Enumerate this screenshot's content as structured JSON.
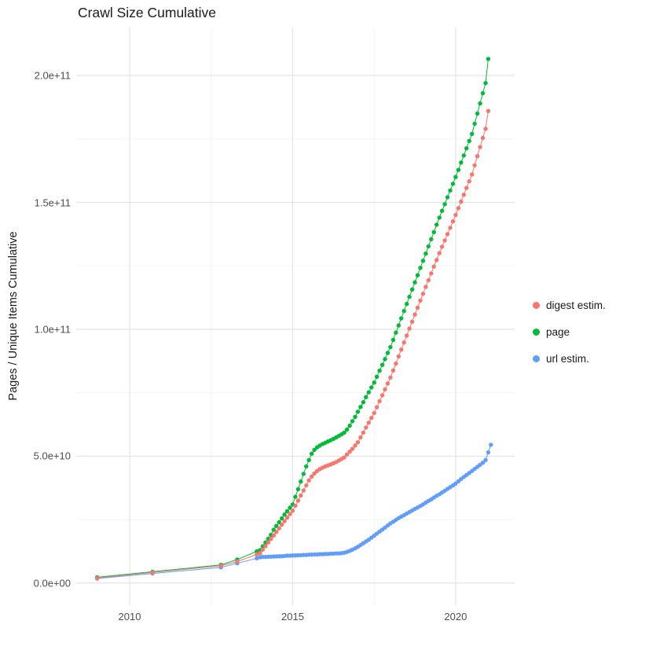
{
  "chart_data": {
    "type": "scatter",
    "title": "Crawl Size Cumulative",
    "ylabel": "Pages / Unique Items Cumulative",
    "xlabel": "",
    "y_values_unit": "billions (1e9 pages / items)",
    "x_domain": [
      2008.36,
      2021.81
    ],
    "y_domain": [
      -8.7,
      218.9
    ],
    "grid": "on",
    "legend_position": "right",
    "x_ticks": [
      {
        "v": 2010,
        "label": "2010"
      },
      {
        "v": 2015,
        "label": "2015"
      },
      {
        "v": 2020,
        "label": "2020"
      }
    ],
    "x_minor": [
      2012.5,
      2017.5
    ],
    "y_ticks": [
      {
        "v": 0,
        "label": "0.0e+00"
      },
      {
        "v": 50,
        "label": "5.0e+10"
      },
      {
        "v": 100,
        "label": "1.0e+11"
      },
      {
        "v": 150,
        "label": "1.5e+11"
      },
      {
        "v": 200,
        "label": "2.0e+11"
      }
    ],
    "y_minor": [
      25,
      75,
      125,
      175
    ],
    "colors": {
      "grid_major": "#e4e4e4",
      "grid_minor": "#f2f2f2",
      "tick_text": "#4d4d4d",
      "title_text": "#1a1a1a"
    },
    "series": [
      {
        "key": "digest",
        "name": "digest estim.",
        "color": "#F8766D",
        "points": [
          [
            2009.0,
            2.0
          ],
          [
            2010.7,
            4.2
          ],
          [
            2012.8,
            6.8
          ],
          [
            2013.3,
            8.5
          ],
          [
            2013.9,
            11.3
          ],
          [
            2014.0,
            11.8
          ],
          [
            2014.083,
            13.2
          ],
          [
            2014.167,
            14.6
          ],
          [
            2014.25,
            16.0
          ],
          [
            2014.333,
            17.4
          ],
          [
            2014.417,
            18.8
          ],
          [
            2014.5,
            20.2
          ],
          [
            2014.583,
            21.6
          ],
          [
            2014.667,
            23.0
          ],
          [
            2014.75,
            24.4
          ],
          [
            2014.833,
            25.8
          ],
          [
            2014.917,
            27.2
          ],
          [
            2015.0,
            28.5
          ],
          [
            2015.083,
            30.5
          ],
          [
            2015.167,
            32.5
          ],
          [
            2015.25,
            34.5
          ],
          [
            2015.333,
            36.5
          ],
          [
            2015.417,
            38.5
          ],
          [
            2015.5,
            40.5
          ],
          [
            2015.583,
            42.0
          ],
          [
            2015.667,
            43.2
          ],
          [
            2015.75,
            44.2
          ],
          [
            2015.833,
            44.9
          ],
          [
            2015.917,
            45.5
          ],
          [
            2016.0,
            46.0
          ],
          [
            2016.083,
            46.4
          ],
          [
            2016.167,
            46.8
          ],
          [
            2016.25,
            47.2
          ],
          [
            2016.333,
            47.7
          ],
          [
            2016.417,
            48.3
          ],
          [
            2016.5,
            48.9
          ],
          [
            2016.583,
            49.5
          ],
          [
            2016.667,
            50.7
          ],
          [
            2016.75,
            51.8
          ],
          [
            2016.833,
            52.9
          ],
          [
            2016.917,
            54.2
          ],
          [
            2017.0,
            55.5
          ],
          [
            2017.083,
            57.4
          ],
          [
            2017.167,
            59.3
          ],
          [
            2017.25,
            61.3
          ],
          [
            2017.333,
            63.2
          ],
          [
            2017.417,
            65.1
          ],
          [
            2017.5,
            67.0
          ],
          [
            2017.583,
            69.3
          ],
          [
            2017.667,
            71.7
          ],
          [
            2017.75,
            74.0
          ],
          [
            2017.833,
            76.3
          ],
          [
            2017.917,
            78.7
          ],
          [
            2018.0,
            81.0
          ],
          [
            2018.083,
            83.8
          ],
          [
            2018.167,
            86.5
          ],
          [
            2018.25,
            89.3
          ],
          [
            2018.333,
            92.0
          ],
          [
            2018.417,
            94.8
          ],
          [
            2018.5,
            97.5
          ],
          [
            2018.583,
            100.3
          ],
          [
            2018.667,
            103.0
          ],
          [
            2018.75,
            105.8
          ],
          [
            2018.833,
            108.5
          ],
          [
            2018.917,
            111.3
          ],
          [
            2019.0,
            114.0
          ],
          [
            2019.083,
            116.7
          ],
          [
            2019.167,
            119.3
          ],
          [
            2019.25,
            122.0
          ],
          [
            2019.333,
            124.7
          ],
          [
            2019.417,
            127.3
          ],
          [
            2019.5,
            130.0
          ],
          [
            2019.583,
            132.5
          ],
          [
            2019.667,
            135.0
          ],
          [
            2019.75,
            137.5
          ],
          [
            2019.833,
            140.0
          ],
          [
            2019.917,
            142.5
          ],
          [
            2020.0,
            145.0
          ],
          [
            2020.083,
            147.7
          ],
          [
            2020.167,
            150.3
          ],
          [
            2020.25,
            153.0
          ],
          [
            2020.333,
            155.7
          ],
          [
            2020.417,
            158.3
          ],
          [
            2020.5,
            161.0
          ],
          [
            2020.583,
            164.6
          ],
          [
            2020.667,
            168.2
          ],
          [
            2020.75,
            171.8
          ],
          [
            2020.833,
            175.4
          ],
          [
            2020.917,
            179.0
          ],
          [
            2021.0,
            186.0
          ]
        ]
      },
      {
        "key": "page",
        "name": "page",
        "color": "#00BA38",
        "points": [
          [
            2009.0,
            2.3
          ],
          [
            2010.7,
            4.5
          ],
          [
            2012.8,
            7.2
          ],
          [
            2013.3,
            9.3
          ],
          [
            2013.9,
            12.5
          ],
          [
            2014.0,
            13.0
          ],
          [
            2014.083,
            14.5
          ],
          [
            2014.167,
            16.0
          ],
          [
            2014.25,
            17.5
          ],
          [
            2014.333,
            19.0
          ],
          [
            2014.417,
            21.0
          ],
          [
            2014.5,
            22.5
          ],
          [
            2014.583,
            24.0
          ],
          [
            2014.667,
            25.5
          ],
          [
            2014.75,
            27.0
          ],
          [
            2014.833,
            28.3
          ],
          [
            2014.917,
            29.7
          ],
          [
            2015.0,
            31.0
          ],
          [
            2015.083,
            34.0
          ],
          [
            2015.167,
            37.0
          ],
          [
            2015.25,
            40.0
          ],
          [
            2015.333,
            43.0
          ],
          [
            2015.417,
            46.0
          ],
          [
            2015.5,
            48.5
          ],
          [
            2015.583,
            51.0
          ],
          [
            2015.667,
            52.5
          ],
          [
            2015.75,
            53.5
          ],
          [
            2015.833,
            54.2
          ],
          [
            2015.917,
            54.8
          ],
          [
            2016.0,
            55.3
          ],
          [
            2016.083,
            55.8
          ],
          [
            2016.167,
            56.3
          ],
          [
            2016.25,
            56.8
          ],
          [
            2016.333,
            57.4
          ],
          [
            2016.417,
            58.0
          ],
          [
            2016.5,
            58.6
          ],
          [
            2016.583,
            59.3
          ],
          [
            2016.667,
            60.5
          ],
          [
            2016.75,
            62.0
          ],
          [
            2016.833,
            63.8
          ],
          [
            2016.917,
            65.5
          ],
          [
            2017.0,
            67.5
          ],
          [
            2017.083,
            69.4
          ],
          [
            2017.167,
            71.3
          ],
          [
            2017.25,
            73.3
          ],
          [
            2017.333,
            75.2
          ],
          [
            2017.417,
            77.1
          ],
          [
            2017.5,
            79.0
          ],
          [
            2017.583,
            81.3
          ],
          [
            2017.667,
            83.7
          ],
          [
            2017.75,
            86.0
          ],
          [
            2017.833,
            88.3
          ],
          [
            2017.917,
            90.7
          ],
          [
            2018.0,
            93.0
          ],
          [
            2018.083,
            95.8
          ],
          [
            2018.167,
            98.7
          ],
          [
            2018.25,
            101.5
          ],
          [
            2018.333,
            104.3
          ],
          [
            2018.417,
            107.2
          ],
          [
            2018.5,
            110.0
          ],
          [
            2018.583,
            112.8
          ],
          [
            2018.667,
            115.7
          ],
          [
            2018.75,
            118.5
          ],
          [
            2018.833,
            121.3
          ],
          [
            2018.917,
            124.2
          ],
          [
            2019.0,
            127.0
          ],
          [
            2019.083,
            129.8
          ],
          [
            2019.167,
            132.7
          ],
          [
            2019.25,
            135.5
          ],
          [
            2019.333,
            138.3
          ],
          [
            2019.417,
            141.2
          ],
          [
            2019.5,
            144.0
          ],
          [
            2019.583,
            146.7
          ],
          [
            2019.667,
            149.3
          ],
          [
            2019.75,
            152.0
          ],
          [
            2019.833,
            154.7
          ],
          [
            2019.917,
            157.3
          ],
          [
            2020.0,
            160.0
          ],
          [
            2020.083,
            162.8
          ],
          [
            2020.167,
            165.7
          ],
          [
            2020.25,
            168.5
          ],
          [
            2020.333,
            171.3
          ],
          [
            2020.417,
            174.2
          ],
          [
            2020.5,
            177.0
          ],
          [
            2020.583,
            181.0
          ],
          [
            2020.667,
            185.0
          ],
          [
            2020.75,
            189.0
          ],
          [
            2020.833,
            193.0
          ],
          [
            2020.917,
            197.0
          ],
          [
            2021.0,
            206.5
          ]
        ]
      },
      {
        "key": "url",
        "name": "url estim.",
        "color": "#619CFF",
        "points": [
          [
            2009.0,
            1.8
          ],
          [
            2010.7,
            3.8
          ],
          [
            2012.8,
            6.2
          ],
          [
            2013.3,
            7.8
          ],
          [
            2013.9,
            9.8
          ],
          [
            2014.0,
            10.2
          ],
          [
            2014.083,
            10.3
          ],
          [
            2014.167,
            10.3
          ],
          [
            2014.25,
            10.4
          ],
          [
            2014.333,
            10.4
          ],
          [
            2014.417,
            10.5
          ],
          [
            2014.5,
            10.5
          ],
          [
            2014.583,
            10.6
          ],
          [
            2014.667,
            10.6
          ],
          [
            2014.75,
            10.7
          ],
          [
            2014.833,
            10.8
          ],
          [
            2014.917,
            10.8
          ],
          [
            2015.0,
            10.9
          ],
          [
            2015.083,
            10.9
          ],
          [
            2015.167,
            11.0
          ],
          [
            2015.25,
            11.0
          ],
          [
            2015.333,
            11.1
          ],
          [
            2015.417,
            11.1
          ],
          [
            2015.5,
            11.2
          ],
          [
            2015.583,
            11.2
          ],
          [
            2015.667,
            11.3
          ],
          [
            2015.75,
            11.3
          ],
          [
            2015.833,
            11.4
          ],
          [
            2015.917,
            11.4
          ],
          [
            2016.0,
            11.5
          ],
          [
            2016.083,
            11.5
          ],
          [
            2016.167,
            11.6
          ],
          [
            2016.25,
            11.6
          ],
          [
            2016.333,
            11.7
          ],
          [
            2016.417,
            11.7
          ],
          [
            2016.5,
            11.8
          ],
          [
            2016.583,
            12.0
          ],
          [
            2016.667,
            12.3
          ],
          [
            2016.75,
            12.7
          ],
          [
            2016.833,
            13.2
          ],
          [
            2016.917,
            13.7
          ],
          [
            2017.0,
            14.3
          ],
          [
            2017.083,
            15.0
          ],
          [
            2017.167,
            15.7
          ],
          [
            2017.25,
            16.4
          ],
          [
            2017.333,
            17.1
          ],
          [
            2017.417,
            17.9
          ],
          [
            2017.5,
            18.7
          ],
          [
            2017.583,
            19.5
          ],
          [
            2017.667,
            20.3
          ],
          [
            2017.75,
            21.1
          ],
          [
            2017.833,
            21.9
          ],
          [
            2017.917,
            22.7
          ],
          [
            2018.0,
            23.5
          ],
          [
            2018.083,
            24.2
          ],
          [
            2018.167,
            24.9
          ],
          [
            2018.25,
            25.6
          ],
          [
            2018.333,
            26.2
          ],
          [
            2018.417,
            26.8
          ],
          [
            2018.5,
            27.4
          ],
          [
            2018.583,
            28.0
          ],
          [
            2018.667,
            28.6
          ],
          [
            2018.75,
            29.2
          ],
          [
            2018.833,
            29.8
          ],
          [
            2018.917,
            30.4
          ],
          [
            2019.0,
            31.0
          ],
          [
            2019.083,
            31.7
          ],
          [
            2019.167,
            32.4
          ],
          [
            2019.25,
            33.0
          ],
          [
            2019.333,
            33.7
          ],
          [
            2019.417,
            34.4
          ],
          [
            2019.5,
            35.0
          ],
          [
            2019.583,
            35.7
          ],
          [
            2019.667,
            36.4
          ],
          [
            2019.75,
            37.1
          ],
          [
            2019.833,
            37.8
          ],
          [
            2019.917,
            38.5
          ],
          [
            2020.0,
            39.2
          ],
          [
            2020.083,
            40.1
          ],
          [
            2020.167,
            41.0
          ],
          [
            2020.25,
            41.8
          ],
          [
            2020.333,
            42.6
          ],
          [
            2020.417,
            43.4
          ],
          [
            2020.5,
            44.2
          ],
          [
            2020.583,
            45.0
          ],
          [
            2020.667,
            45.8
          ],
          [
            2020.75,
            46.6
          ],
          [
            2020.833,
            47.4
          ],
          [
            2020.917,
            48.5
          ],
          [
            2021.0,
            51.5
          ],
          [
            2021.083,
            54.5
          ]
        ]
      }
    ]
  }
}
